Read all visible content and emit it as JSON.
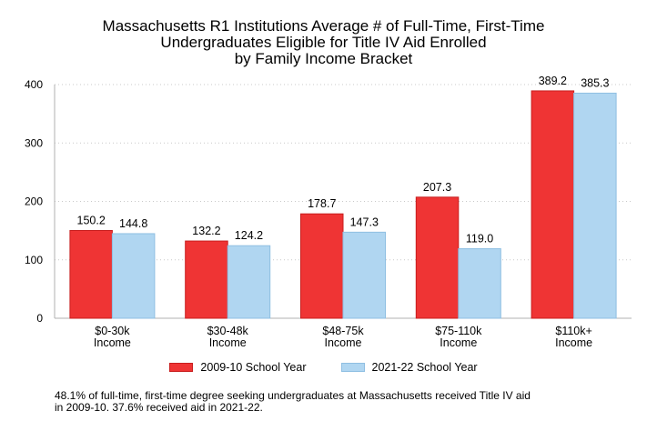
{
  "chart_data": {
    "type": "bar",
    "title_lines": [
      "Massachusetts R1 Institutions Average # of Full-Time, First-Time",
      "Undergraduates Eligible for Title IV Aid Enrolled",
      "by Family Income Bracket"
    ],
    "categories": [
      [
        "$0-30k",
        "Income"
      ],
      [
        "$30-48k",
        "Income"
      ],
      [
        "$48-75k",
        "Income"
      ],
      [
        "$75-110k",
        "Income"
      ],
      [
        "$110k+",
        "Income"
      ]
    ],
    "series": [
      {
        "name": "2009-10 School Year",
        "values": [
          150.2,
          132.2,
          178.7,
          207.3,
          389.2
        ],
        "color": "#ef3434",
        "stroke": "#c81e1e"
      },
      {
        "name": "2021-22 School Year",
        "values": [
          144.8,
          124.2,
          147.3,
          119.0,
          385.3
        ],
        "color": "#b0d6f1",
        "stroke": "#8fbfe2"
      }
    ],
    "data_labels": [
      [
        "150.2",
        "132.2",
        "178.7",
        "207.3",
        "389.2"
      ],
      [
        "144.8",
        "124.2",
        "147.3",
        "119.0",
        "385.3"
      ]
    ],
    "yticks": [
      "0",
      "100",
      "200",
      "300",
      "400"
    ],
    "ylim": [
      0,
      400
    ],
    "xlabel": "",
    "ylabel": "",
    "grid": true,
    "legend_position": "bottom"
  },
  "note": [
    "48.1% of full-time, first-time degree seeking undergraduates at Massachusetts received Title IV aid",
    "in 2009-10. 37.6% received aid in 2021-22."
  ]
}
